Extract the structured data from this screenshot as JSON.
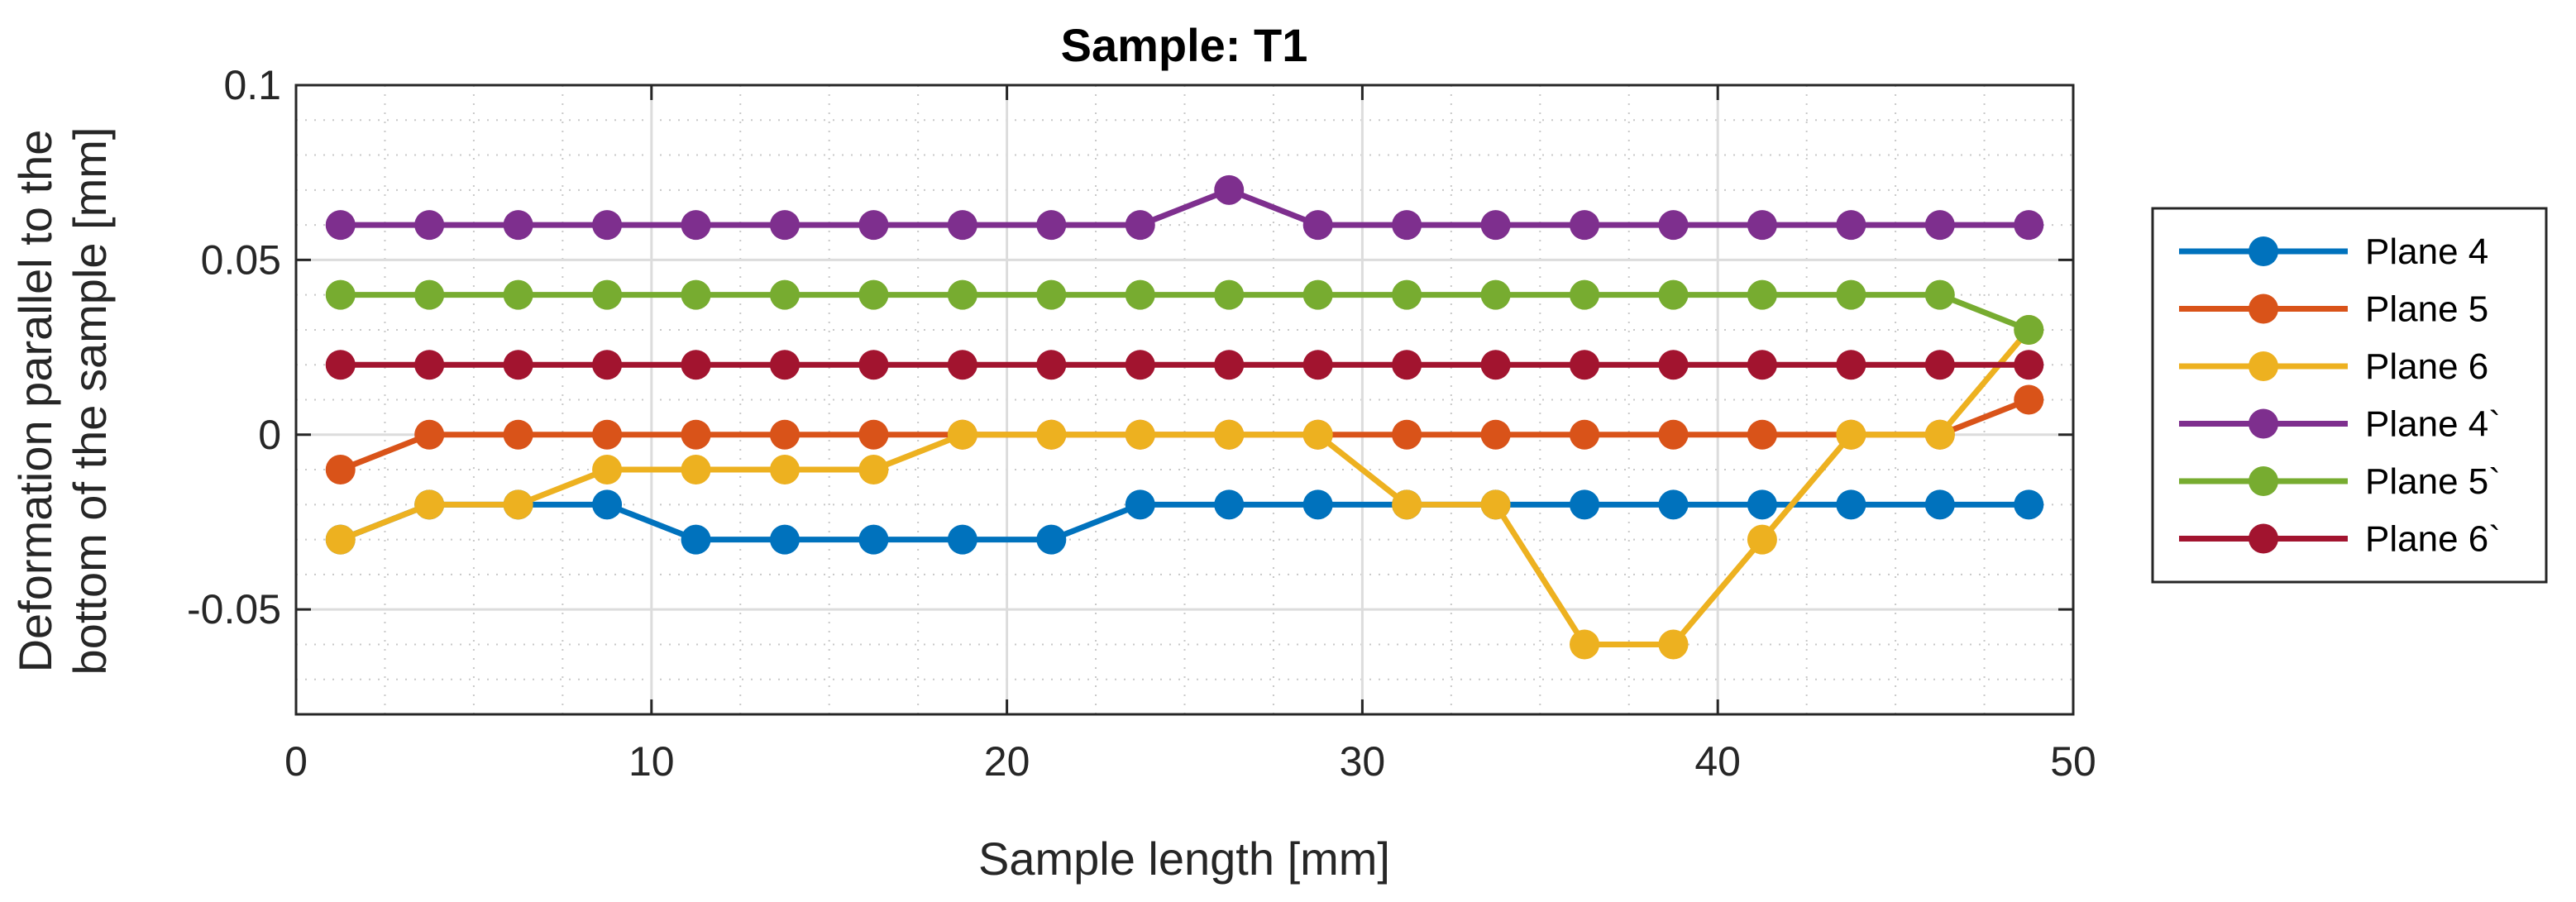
{
  "chart_data": {
    "type": "line",
    "title": "Sample: T1",
    "xlabel": "Sample length [mm]",
    "ylabel": [
      "Deformation parallel to the",
      "bottom of the sample [mm]"
    ],
    "xlim": [
      0,
      50
    ],
    "ylim": [
      -0.08,
      0.1
    ],
    "xticks": [
      0,
      10,
      20,
      30,
      40,
      50
    ],
    "xtick_labels": [
      "0",
      "10",
      "20",
      "30",
      "40",
      "50"
    ],
    "yticks": [
      -0.05,
      0,
      0.05,
      0.1
    ],
    "ytick_labels": [
      "-0.05",
      "0",
      "0.05",
      "0.1"
    ],
    "grid": "major and minor",
    "legend_position": "outside-right",
    "x": [
      1.25,
      3.75,
      6.25,
      8.75,
      11.25,
      13.75,
      16.25,
      18.75,
      21.25,
      23.75,
      26.25,
      28.75,
      31.25,
      33.75,
      36.25,
      38.75,
      41.25,
      43.75,
      46.25,
      48.75
    ],
    "series": [
      {
        "name": "Plane 4",
        "color": "#0072BD",
        "values": [
          -0.03,
          -0.02,
          -0.02,
          -0.02,
          -0.03,
          -0.03,
          -0.03,
          -0.03,
          -0.03,
          -0.02,
          -0.02,
          -0.02,
          -0.02,
          -0.02,
          -0.02,
          -0.02,
          -0.02,
          -0.02,
          -0.02,
          -0.02
        ]
      },
      {
        "name": "Plane 5",
        "color": "#D95319",
        "values": [
          -0.01,
          0,
          0,
          0,
          0,
          0,
          0,
          0,
          0,
          0,
          0,
          0,
          0,
          0,
          0,
          0,
          0,
          0,
          0,
          0.01
        ]
      },
      {
        "name": "Plane 6",
        "color": "#EDB120",
        "values": [
          -0.03,
          -0.02,
          -0.02,
          -0.01,
          -0.01,
          -0.01,
          -0.01,
          0,
          0,
          0,
          0,
          0,
          -0.02,
          -0.02,
          -0.06,
          -0.06,
          -0.03,
          0,
          0,
          0.03
        ]
      },
      {
        "name": "Plane 4`",
        "color": "#7E2F8E",
        "values": [
          0.06,
          0.06,
          0.06,
          0.06,
          0.06,
          0.06,
          0.06,
          0.06,
          0.06,
          0.06,
          0.07,
          0.06,
          0.06,
          0.06,
          0.06,
          0.06,
          0.06,
          0.06,
          0.06,
          0.06
        ]
      },
      {
        "name": "Plane 5`",
        "color": "#77AC30",
        "values": [
          0.04,
          0.04,
          0.04,
          0.04,
          0.04,
          0.04,
          0.04,
          0.04,
          0.04,
          0.04,
          0.04,
          0.04,
          0.04,
          0.04,
          0.04,
          0.04,
          0.04,
          0.04,
          0.04,
          0.03
        ]
      },
      {
        "name": "Plane 6`",
        "color": "#A2142F",
        "values": [
          0.02,
          0.02,
          0.02,
          0.02,
          0.02,
          0.02,
          0.02,
          0.02,
          0.02,
          0.02,
          0.02,
          0.02,
          0.02,
          0.02,
          0.02,
          0.02,
          0.02,
          0.02,
          0.02,
          0.02
        ]
      }
    ]
  }
}
